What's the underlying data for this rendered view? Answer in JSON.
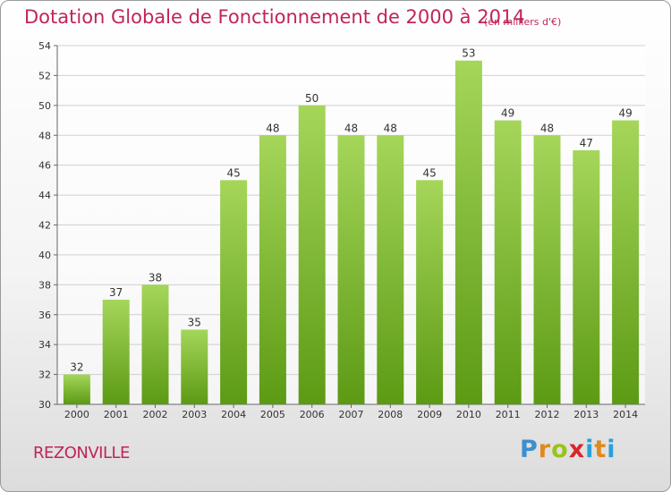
{
  "title": "Dotation Globale de Fonctionnement de 2000 à 2014",
  "unit_note": "(en milliers d'€)",
  "commune": "REZONVILLE",
  "logo": "Proxiti",
  "colors": {
    "title": "#c0245c",
    "bar_light": "#a5d65a",
    "bar_dark": "#5c9a14",
    "grid": "#d0d0d0"
  },
  "chart_data": {
    "type": "bar",
    "categories": [
      "2000",
      "2001",
      "2002",
      "2003",
      "2004",
      "2005",
      "2006",
      "2007",
      "2008",
      "2009",
      "2010",
      "2011",
      "2012",
      "2013",
      "2014"
    ],
    "values": [
      32,
      37,
      38,
      35,
      45,
      48,
      50,
      48,
      48,
      45,
      53,
      49,
      48,
      47,
      49
    ],
    "ylim": [
      30,
      54
    ],
    "yticks": [
      30,
      32,
      34,
      36,
      38,
      40,
      42,
      44,
      46,
      48,
      50,
      52,
      54
    ],
    "grid": true,
    "data_labels": true
  }
}
